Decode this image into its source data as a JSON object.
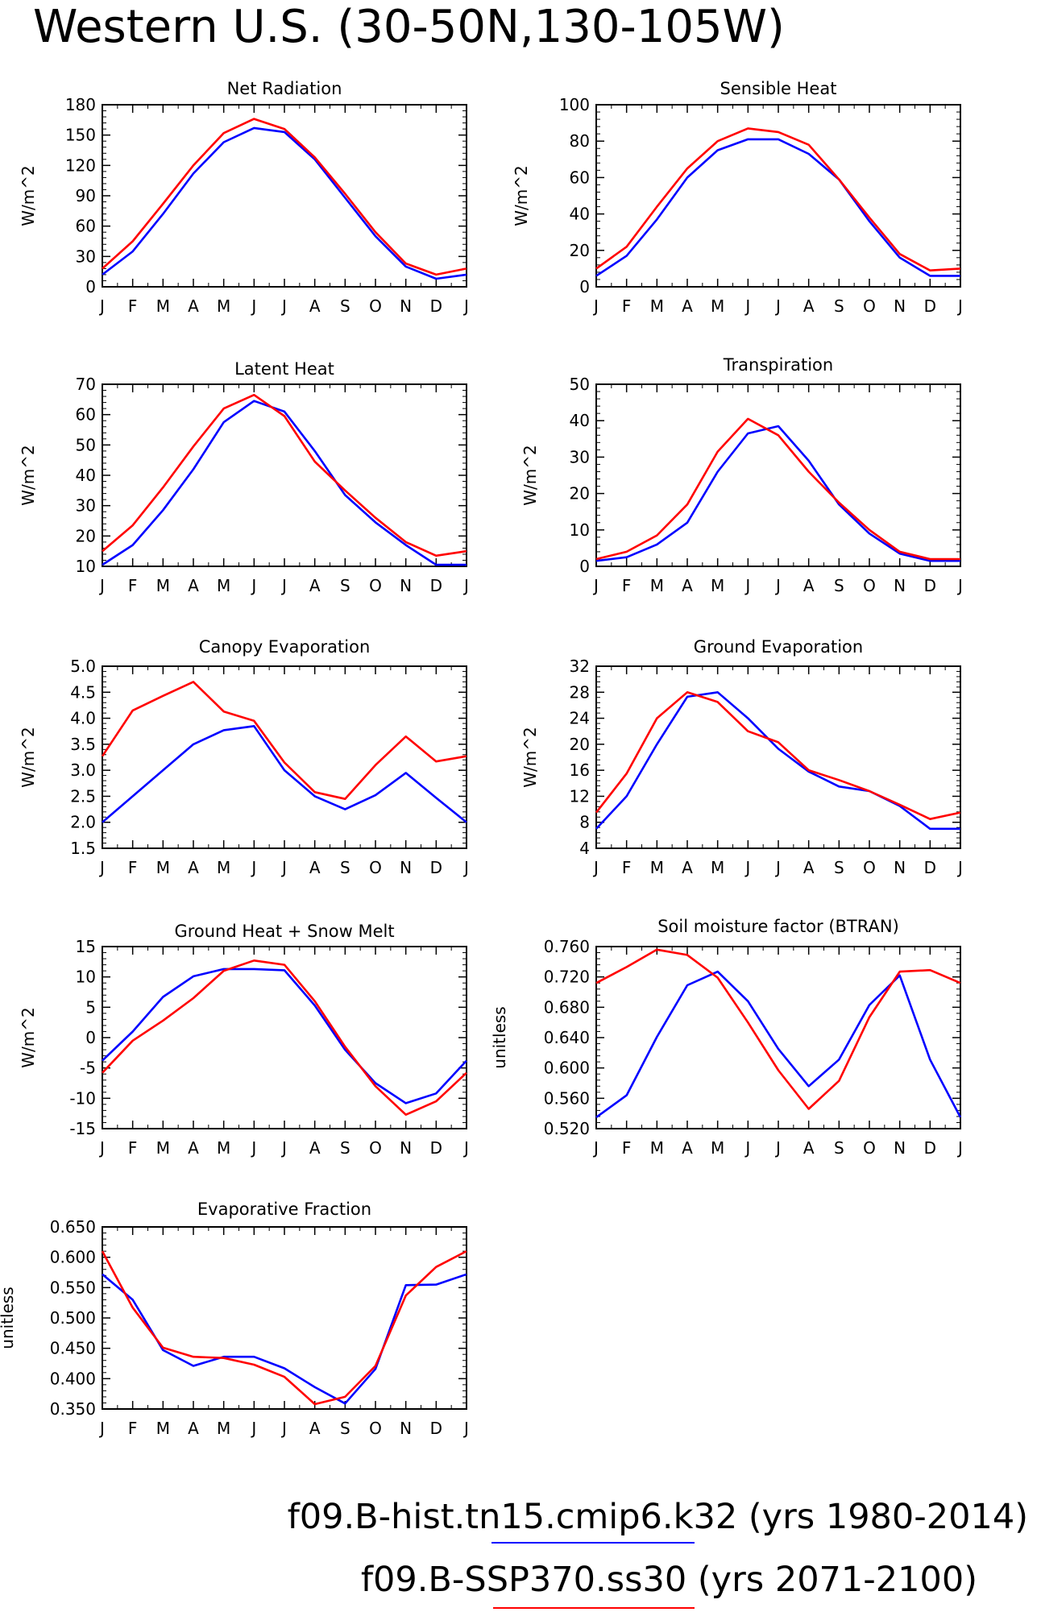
{
  "title": "Western U.S. (30-50N,130-105W)",
  "colors": {
    "hist": "#0000ff",
    "ssp": "#ff0000",
    "frame": "#000000"
  },
  "legend": [
    {
      "label": "f09.B-hist.tn15.cmip6.k32 (yrs 1980-2014)",
      "color": "#0000ff"
    },
    {
      "label": "f09.B-SSP370.ss30 (yrs 2071-2100)",
      "color": "#ff0000"
    }
  ],
  "chart_data": [
    {
      "type": "line",
      "title": "Net Radiation",
      "ylabel": "W/m^2",
      "categories": [
        "J",
        "F",
        "M",
        "A",
        "M",
        "J",
        "J",
        "A",
        "S",
        "O",
        "N",
        "D",
        "J"
      ],
      "ylim": [
        0,
        180
      ],
      "yticks": [
        "0",
        "30",
        "60",
        "90",
        "120",
        "150",
        "180"
      ],
      "series": [
        {
          "color": "#0000ff",
          "values": [
            12,
            35,
            72,
            112,
            143,
            157,
            153,
            126,
            88,
            50,
            20,
            8,
            12
          ]
        },
        {
          "color": "#ff0000",
          "values": [
            18,
            45,
            82,
            120,
            152,
            166,
            156,
            128,
            92,
            54,
            23,
            12,
            18
          ]
        }
      ]
    },
    {
      "type": "line",
      "title": "Sensible Heat",
      "ylabel": "W/m^2",
      "categories": [
        "J",
        "F",
        "M",
        "A",
        "M",
        "J",
        "J",
        "A",
        "S",
        "O",
        "N",
        "D",
        "J"
      ],
      "ylim": [
        0,
        100
      ],
      "yticks": [
        "0",
        "20",
        "40",
        "60",
        "80",
        "100"
      ],
      "series": [
        {
          "color": "#0000ff",
          "values": [
            6,
            17,
            37,
            60,
            75,
            81,
            81,
            73,
            59,
            36,
            16,
            6,
            6
          ]
        },
        {
          "color": "#ff0000",
          "values": [
            10,
            22,
            44,
            65,
            80,
            87,
            85,
            78,
            59,
            38,
            18,
            9,
            10
          ]
        }
      ]
    },
    {
      "type": "line",
      "title": "Latent Heat",
      "ylabel": "W/m^2",
      "categories": [
        "J",
        "F",
        "M",
        "A",
        "M",
        "J",
        "J",
        "A",
        "S",
        "O",
        "N",
        "D",
        "J"
      ],
      "ylim": [
        10,
        70
      ],
      "yticks": [
        "10",
        "20",
        "30",
        "40",
        "50",
        "60",
        "70"
      ],
      "series": [
        {
          "color": "#0000ff",
          "values": [
            10.5,
            17,
            28.5,
            42,
            57.5,
            64.5,
            61,
            48,
            33.5,
            24.5,
            17,
            10.5,
            10.5
          ]
        },
        {
          "color": "#ff0000",
          "values": [
            15,
            23.5,
            36,
            49.5,
            62,
            66.5,
            59.5,
            44.5,
            35,
            26,
            18,
            13.5,
            15
          ]
        }
      ]
    },
    {
      "type": "line",
      "title": "Transpiration",
      "ylabel": "W/m^2",
      "categories": [
        "J",
        "F",
        "M",
        "A",
        "M",
        "J",
        "J",
        "A",
        "S",
        "O",
        "N",
        "D",
        "J"
      ],
      "ylim": [
        0,
        50
      ],
      "yticks": [
        "0",
        "10",
        "20",
        "30",
        "40",
        "50"
      ],
      "series": [
        {
          "color": "#0000ff",
          "values": [
            1.5,
            2.5,
            6,
            12,
            26,
            36.5,
            38.5,
            29,
            17,
            9,
            3.5,
            1.5,
            1.5
          ]
        },
        {
          "color": "#ff0000",
          "values": [
            2,
            4,
            8.5,
            17,
            31.5,
            40.5,
            36,
            26,
            17.5,
            10,
            4,
            2,
            2
          ]
        }
      ]
    },
    {
      "type": "line",
      "title": "Canopy Evaporation",
      "ylabel": "W/m^2",
      "categories": [
        "J",
        "F",
        "M",
        "A",
        "M",
        "J",
        "J",
        "A",
        "S",
        "O",
        "N",
        "D",
        "J"
      ],
      "ylim": [
        1.5,
        5.0
      ],
      "yticks": [
        "1.5",
        "2.0",
        "2.5",
        "3.0",
        "3.5",
        "4.0",
        "4.5",
        "5.0"
      ],
      "series": [
        {
          "color": "#0000ff",
          "values": [
            2.0,
            2.5,
            3.0,
            3.5,
            3.77,
            3.85,
            3.0,
            2.5,
            2.25,
            2.52,
            2.95,
            2.47,
            2.0
          ]
        },
        {
          "color": "#ff0000",
          "values": [
            3.27,
            4.15,
            4.43,
            4.7,
            4.13,
            3.95,
            3.15,
            2.58,
            2.45,
            3.1,
            3.65,
            3.17,
            3.27
          ]
        }
      ]
    },
    {
      "type": "line",
      "title": "Ground Evaporation",
      "ylabel": "W/m^2",
      "categories": [
        "J",
        "F",
        "M",
        "A",
        "M",
        "J",
        "J",
        "A",
        "S",
        "O",
        "N",
        "D",
        "J"
      ],
      "ylim": [
        4,
        32
      ],
      "yticks": [
        "4",
        "8",
        "12",
        "16",
        "20",
        "24",
        "28",
        "32"
      ],
      "series": [
        {
          "color": "#0000ff",
          "values": [
            7,
            12,
            20,
            27.3,
            28,
            24,
            19.3,
            15.8,
            13.5,
            12.8,
            10.5,
            7,
            7
          ]
        },
        {
          "color": "#ff0000",
          "values": [
            9.5,
            15.5,
            24,
            28,
            26.5,
            22,
            20.3,
            16,
            14.5,
            12.8,
            10.7,
            8.5,
            9.5
          ]
        }
      ]
    },
    {
      "type": "line",
      "title": "Ground Heat + Snow Melt",
      "ylabel": "W/m^2",
      "categories": [
        "J",
        "F",
        "M",
        "A",
        "M",
        "J",
        "J",
        "A",
        "S",
        "O",
        "N",
        "D",
        "J"
      ],
      "ylim": [
        -15,
        15
      ],
      "yticks": [
        "-15",
        "-10",
        "-5",
        "0",
        "5",
        "10",
        "15"
      ],
      "series": [
        {
          "color": "#0000ff",
          "values": [
            -3.8,
            1.0,
            6.7,
            10.1,
            11.3,
            11.3,
            11.1,
            5.3,
            -2.0,
            -7.5,
            -10.8,
            -9.2,
            -3.8
          ]
        },
        {
          "color": "#ff0000",
          "values": [
            -5.8,
            -0.5,
            2.8,
            6.5,
            11.0,
            12.7,
            12.0,
            6.0,
            -1.5,
            -8.0,
            -12.7,
            -10.5,
            -5.8
          ]
        }
      ]
    },
    {
      "type": "line",
      "title": "Soil moisture factor (BTRAN)",
      "ylabel": "unitless",
      "categories": [
        "J",
        "F",
        "M",
        "A",
        "M",
        "J",
        "J",
        "A",
        "S",
        "O",
        "N",
        "D",
        "J"
      ],
      "ylim": [
        0.52,
        0.76
      ],
      "yticks": [
        "0.520",
        "0.560",
        "0.600",
        "0.640",
        "0.680",
        "0.720",
        "0.760"
      ],
      "series": [
        {
          "color": "#0000ff",
          "values": [
            0.535,
            0.564,
            0.641,
            0.709,
            0.727,
            0.688,
            0.625,
            0.576,
            0.611,
            0.683,
            0.722,
            0.611,
            0.535
          ]
        },
        {
          "color": "#ff0000",
          "values": [
            0.712,
            0.733,
            0.756,
            0.749,
            0.719,
            0.66,
            0.597,
            0.546,
            0.583,
            0.667,
            0.727,
            0.729,
            0.712
          ]
        }
      ]
    },
    {
      "type": "line",
      "title": "Evaporative Fraction",
      "ylabel": "unitless",
      "categories": [
        "J",
        "F",
        "M",
        "A",
        "M",
        "J",
        "J",
        "A",
        "S",
        "O",
        "N",
        "D",
        "J"
      ],
      "ylim": [
        0.35,
        0.65
      ],
      "yticks": [
        "0.350",
        "0.400",
        "0.450",
        "0.500",
        "0.550",
        "0.600",
        "0.650"
      ],
      "series": [
        {
          "color": "#0000ff",
          "values": [
            0.572,
            0.53,
            0.447,
            0.421,
            0.436,
            0.436,
            0.417,
            0.386,
            0.359,
            0.416,
            0.554,
            0.555,
            0.572
          ]
        },
        {
          "color": "#ff0000",
          "values": [
            0.61,
            0.517,
            0.451,
            0.436,
            0.434,
            0.423,
            0.403,
            0.358,
            0.37,
            0.421,
            0.537,
            0.584,
            0.61
          ]
        }
      ]
    }
  ]
}
